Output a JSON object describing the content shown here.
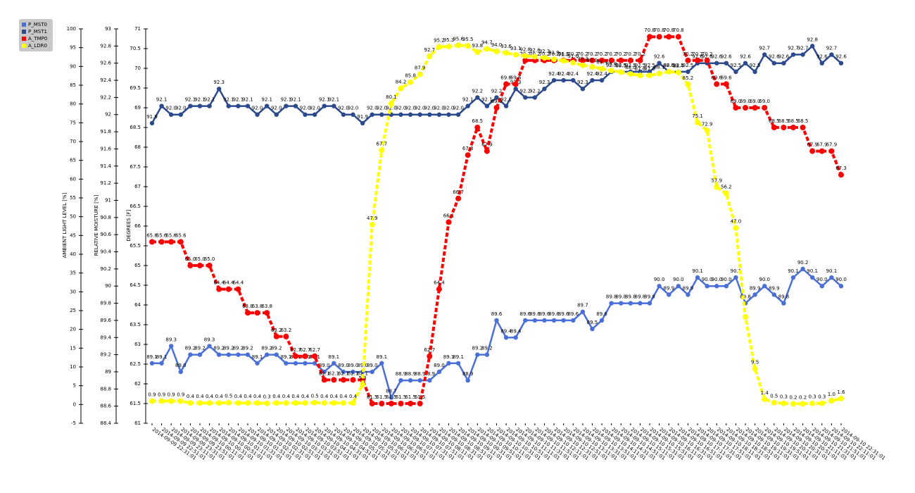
{
  "chart_data": {
    "type": "line",
    "categories": [
      "2014-09-09 22:31:01",
      "2014-09-09 22:51:01",
      "2014-09-09 23:11:01",
      "2014-09-09 23:31:01",
      "2014-09-09 23:51:01",
      "2014-09-10 00:11:01",
      "2014-09-10 00:31:01",
      "2014-09-10 00:51:01",
      "2014-09-10 01:11:01",
      "2014-09-10 01:31:01",
      "2014-09-10 01:51:01",
      "2014-09-10 02:11:01",
      "2014-09-10 02:31:01",
      "2014-09-10 02:51:01",
      "2014-09-10 03:11:01",
      "2014-09-10 03:31:01",
      "2014-09-10 03:51:01",
      "2014-09-10 04:11:01",
      "2014-09-10 04:31:01",
      "2014-09-10 04:51:01",
      "2014-09-10 05:11:01",
      "2014-09-10 05:31:01",
      "2014-09-10 05:51:01",
      "2014-09-10 06:11:01",
      "2014-09-10 06:31:01",
      "2014-09-10 06:51:01",
      "2014-09-10 07:11:01",
      "2014-09-10 07:31:01",
      "2014-09-10 07:51:01",
      "2014-09-10 08:11:01",
      "2014-09-10 08:31:01",
      "2014-09-10 08:51:01",
      "2014-09-10 09:11:01",
      "2014-09-10 09:31:01",
      "2014-09-10 09:51:01",
      "2014-09-10 10:11:01",
      "2014-09-10 10:31:01",
      "2014-09-10 10:51:01",
      "2014-09-10 11:11:01",
      "2014-09-10 11:31:01",
      "2014-09-10 11:51:01",
      "2014-09-10 12:11:01",
      "2014-09-10 12:31:01",
      "2014-09-10 12:51:01",
      "2014-09-10 13:11:01",
      "2014-09-10 13:31:01",
      "2014-09-10 13:51:01",
      "2014-09-10 14:11:01",
      "2014-09-10 14:31:01",
      "2014-09-10 14:51:01",
      "2014-09-10 15:11:01",
      "2014-09-10 15:31:01",
      "2014-09-10 15:51:01",
      "2014-09-10 16:11:01",
      "2014-09-10 16:31:01",
      "2014-09-10 16:51:01",
      "2014-09-10 17:11:01",
      "2014-09-10 17:31:01",
      "2014-09-10 17:51:01",
      "2014-09-10 18:11:01",
      "2014-09-10 18:31:01",
      "2014-09-10 18:51:01",
      "2014-09-10 19:11:01",
      "2014-09-10 19:31:01",
      "2014-09-10 19:51:01",
      "2014-09-10 20:11:01",
      "2014-09-10 20:31:01",
      "2014-09-10 20:51:01",
      "2014-09-10 21:11:01",
      "2014-09-10 21:31:01",
      "2014-09-10 21:51:01",
      "2014-09-10 22:11:01",
      "2014-09-10 22:31:01"
    ],
    "axes": [
      {
        "label": "AMBIENT LIGHT LEVEL [%]",
        "lim": [
          -5,
          100
        ],
        "ticks": [
          100,
          95,
          90,
          85,
          80,
          75,
          70,
          65,
          60,
          55,
          50,
          45,
          40,
          35,
          30,
          25,
          20,
          15,
          10,
          5,
          0,
          -5
        ]
      },
      {
        "label": "RELATIVE MOISTURE [%]",
        "lim": [
          88.4,
          93
        ],
        "ticks": [
          93,
          92.8,
          92.6,
          92.4,
          92.2,
          92,
          91.8,
          91.6,
          91.4,
          91.2,
          91,
          90.8,
          90.6,
          90.4,
          90.2,
          90,
          89.8,
          89.6,
          89.4,
          89.2,
          89,
          88.8,
          88.6,
          88.4
        ]
      },
      {
        "label": "DEGREES [F]",
        "lim": [
          61,
          71
        ],
        "ticks": [
          71,
          70.5,
          70,
          69.5,
          69,
          68.5,
          68,
          67.5,
          67,
          66.5,
          66,
          65.5,
          65,
          64.5,
          64,
          63.5,
          63,
          62.5,
          62,
          61.5,
          61
        ]
      }
    ],
    "legend": "top-left",
    "series": [
      {
        "name": "P_MST0",
        "color": "#4a6fd6",
        "axis": 1,
        "line_style": "solid",
        "values": [
          89.1,
          89.1,
          89.3,
          89.0,
          89.2,
          89.2,
          89.3,
          89.2,
          89.2,
          89.2,
          89.2,
          89.1,
          89.2,
          89.2,
          89.1,
          89.1,
          89.1,
          89.1,
          89.0,
          89.1,
          89.0,
          89.0,
          89.0,
          89.0,
          89.1,
          88.7,
          88.9,
          88.9,
          88.9,
          88.9,
          89.0,
          89.1,
          89.1,
          88.9,
          89.2,
          89.2,
          89.6,
          89.4,
          89.4,
          89.6,
          89.6,
          89.6,
          89.6,
          89.6,
          89.6,
          89.7,
          89.5,
          89.6,
          89.8,
          89.8,
          89.8,
          89.8,
          89.8,
          90.0,
          89.9,
          90.0,
          89.9,
          90.1,
          90.0,
          90.0,
          90.0,
          90.1,
          89.8,
          89.9,
          90.0,
          89.9,
          89.8,
          90.1,
          90.2,
          90.1,
          90.0,
          90.1,
          90.0
        ],
        "value_labels": [
          "89.1",
          "89.1",
          "89.3",
          "89.0",
          "89.2",
          "89.2",
          "89.3",
          "89.2",
          "89.2",
          "89.2",
          "89.2",
          "89.1",
          "89.2",
          "89.2",
          "89.1",
          "89.1",
          "89.1",
          "89.1",
          "89.0",
          "89.1",
          "89.0",
          "89.0",
          "89.0",
          "89.0",
          "89.1",
          "88.7",
          "88.9",
          "88.9",
          "88.9",
          "88.9",
          "89.0",
          "89.1",
          "89.1",
          "88.9",
          "89.2",
          "89.2",
          "89.6",
          "89.4",
          "89.4",
          "89.6",
          "89.6",
          "89.6",
          "89.6",
          "89.6",
          "89.6",
          "89.7",
          "89.5",
          "89.6",
          "89.8",
          "89.8",
          "89.8",
          "89.8",
          "89.8",
          "90.0",
          "89.9",
          "90.0",
          "89.9",
          "90.1",
          "90.0",
          "90.0",
          "90.0",
          "90.1",
          "89.8",
          "89.9",
          "90.0",
          "89.9",
          "89.8",
          "90.1",
          "90.2",
          "90.1",
          "90.0",
          "90.1",
          "90.0"
        ]
      },
      {
        "name": "P_MST1",
        "color": "#2b4a8e",
        "axis": 1,
        "line_style": "solid",
        "values": [
          91.9,
          92.1,
          92.0,
          92.0,
          92.1,
          92.1,
          92.1,
          92.3,
          92.1,
          92.1,
          92.1,
          92.0,
          92.1,
          92.0,
          92.1,
          92.1,
          92.0,
          92.0,
          92.1,
          92.1,
          92.0,
          92.0,
          91.9,
          92.0,
          92.0,
          92.0,
          92.0,
          92.0,
          92.0,
          92.0,
          92.0,
          92.0,
          92.0,
          92.1,
          92.2,
          92.1,
          92.2,
          92.1,
          92.3,
          92.2,
          92.2,
          92.3,
          92.4,
          92.4,
          92.4,
          92.3,
          92.4,
          92.4,
          92.5,
          92.5,
          92.5,
          92.5,
          92.5,
          92.6,
          92.5,
          92.5,
          92.5,
          92.6,
          92.6,
          92.6,
          92.6,
          92.5,
          92.6,
          92.5,
          92.7,
          92.6,
          92.6,
          92.7,
          92.7,
          92.8,
          92.6,
          92.7,
          92.6
        ],
        "value_labels": [
          "91.9",
          "92.1",
          "92.0",
          "92.0",
          "92.1",
          "92.1",
          "92.1",
          "92.3",
          "92.1",
          "92.1",
          "92.1",
          "92.0",
          "92.1",
          "92.0",
          "92.1",
          "92.1",
          "92.0",
          "92.0",
          "92.1",
          "92.1",
          "92.0",
          "92.0",
          "91.9",
          "92.0",
          "92.0",
          "92.0",
          "92.0",
          "92.0",
          "92.0",
          "92.0",
          "92.0",
          "92.0",
          "92.0",
          "92.1",
          "92.2",
          "92.1",
          "92.2",
          "92.1",
          "92.3",
          "92.2",
          "92.2",
          "92.3",
          "92.4",
          "92.4",
          "92.4",
          "92.3",
          "92.4",
          "92.4",
          "92.5",
          "92.5",
          "92.5",
          "92.5",
          "92.5",
          "92.6",
          "92.5",
          "92.5",
          "92.5",
          "92.6",
          "92.6",
          "92.6",
          "92.6",
          "92.5",
          "92.6",
          "92.5",
          "92.7",
          "92.6",
          "92.6",
          "92.7",
          "92.7",
          "92.8",
          "92.6",
          "92.7",
          "92.6"
        ]
      },
      {
        "name": "A_TMP0",
        "color": "#ff0000",
        "axis": 2,
        "line_style": "dashed",
        "values": [
          65.6,
          65.6,
          65.6,
          65.6,
          65.0,
          65.0,
          65.0,
          64.4,
          64.4,
          64.4,
          63.8,
          63.8,
          63.8,
          63.2,
          63.2,
          62.7,
          62.7,
          62.7,
          62.1,
          62.1,
          62.1,
          62.1,
          62.1,
          61.5,
          61.5,
          61.5,
          61.5,
          61.5,
          61.5,
          62.7,
          64.4,
          66.1,
          66.7,
          67.8,
          68.5,
          67.9,
          69.0,
          69.6,
          69.6,
          70.2,
          70.2,
          70.2,
          70.2,
          70.2,
          70.2,
          70.2,
          70.2,
          70.2,
          70.2,
          70.2,
          70.2,
          70.2,
          70.8,
          70.8,
          70.8,
          70.8,
          70.2,
          70.2,
          70.2,
          69.6,
          69.6,
          69.0,
          69.0,
          69.0,
          69.0,
          68.5,
          68.5,
          68.5,
          68.5,
          67.9,
          67.9,
          67.9,
          67.3
        ],
        "value_labels": [
          "65.6",
          "65.6",
          "65.6",
          "65.6",
          "65.0",
          "65.0",
          "65.0",
          "64.4",
          "64.4",
          "64.4",
          "63.8",
          "63.8",
          "63.8",
          "63.2",
          "63.2",
          "62.7",
          "62.7",
          "62.7",
          "62.1",
          "62.1",
          "62.1",
          "62.1",
          "62.1",
          "61.5",
          "61.5",
          "61.5",
          "61.5",
          "61.5",
          "61.5",
          "62.7",
          "64.4",
          "66.1",
          "66.7",
          "67.8",
          "68.5",
          "67.9",
          "69.0",
          "69.6",
          "69.6",
          "70.2",
          "70.2",
          "70.2",
          "70.2",
          "70.2",
          "70.2",
          "70.2",
          "70.2",
          "70.2",
          "70.2",
          "70.2",
          "70.2",
          "70.2",
          "70.8",
          "70.8",
          "70.8",
          "70.8",
          "70.2",
          "70.2",
          "70.2",
          "69.6",
          "69.6",
          "69.0",
          "69.0",
          "69.0",
          "69.0",
          "68.5",
          "68.5",
          "68.5",
          "68.5",
          "67.9",
          "67.9",
          "67.9",
          "67.3"
        ]
      },
      {
        "name": "A_LDR0",
        "color": "#ffff00",
        "axis": 0,
        "line_style": "dashed",
        "values": [
          0.9,
          0.9,
          0.9,
          0.9,
          0.4,
          0.4,
          0.4,
          0.4,
          0.5,
          0.4,
          0.4,
          0.4,
          0.3,
          0.4,
          0.4,
          0.4,
          0.4,
          0.5,
          0.4,
          0.4,
          0.4,
          0.4,
          5.3,
          47.9,
          67.7,
          80.1,
          84.2,
          85.8,
          87.9,
          92.7,
          95.2,
          95.3,
          95.6,
          95.5,
          93.8,
          94.7,
          94.0,
          93.6,
          93.1,
          92.8,
          92.6,
          92.3,
          91.9,
          91.5,
          91.0,
          90.3,
          89.9,
          89.4,
          88.9,
          88.5,
          88.0,
          87.6,
          87.6,
          88.1,
          88.6,
          88.4,
          85.2,
          75.1,
          72.9,
          57.9,
          56.2,
          47.0,
          23.3,
          9.5,
          1.4,
          0.5,
          0.3,
          0.2,
          0.2,
          0.3,
          0.3,
          1.0,
          1.6
        ],
        "value_labels": [
          "0.9",
          "0.9",
          "0.9",
          "0.9",
          "0.4",
          "0.4",
          "0.4",
          "0.4",
          "0.5",
          "0.4",
          "0.4",
          "0.4",
          "0.3",
          "0.4",
          "0.4",
          "0.4",
          "0.4",
          "0.5",
          "0.4",
          "0.4",
          "0.4",
          "0.4",
          "5.3",
          "47.9",
          "67.7",
          "80.1",
          "84.2",
          "85.8",
          "87.9",
          "92.7",
          "95.2",
          "95.3",
          "95.6",
          "95.5",
          "93.8",
          "94.7",
          "94.0",
          "93.6",
          "93.1",
          "92.8",
          "92.6",
          "92.3",
          "91.9",
          "91.5",
          "91.0",
          "90.3",
          "89.9",
          "89.4",
          "88.9",
          "88.5",
          "88.0",
          "87.6",
          "87.6",
          "88.1",
          "88.6",
          "88.4",
          "85.2",
          "75.1",
          "72.9",
          "57.9",
          "56.2",
          "47.0",
          null,
          "9.5",
          "1.4",
          "0.5",
          "0.3",
          "0.2",
          "0.2",
          "0.3",
          "0.3",
          "1.0",
          "1.6"
        ]
      }
    ]
  }
}
